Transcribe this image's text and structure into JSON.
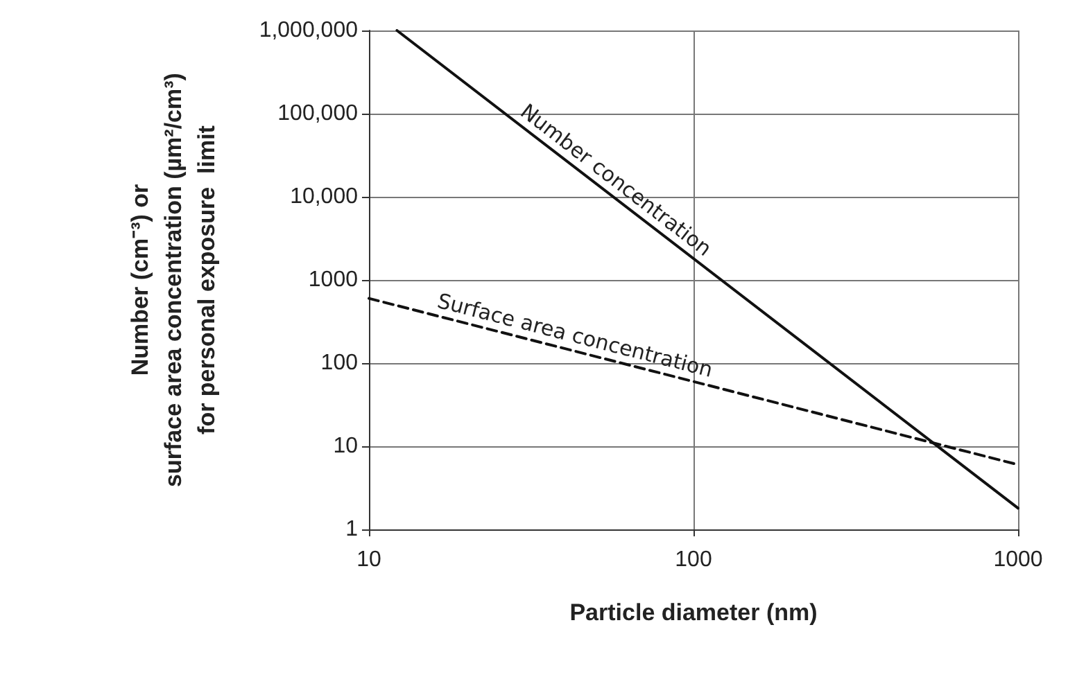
{
  "chart_data": {
    "type": "line",
    "xlabel": "Particle diameter (nm)",
    "ylabel": "Number (cm⁻³) or\nsurface area concentration (µm²/cm³)\nfor personal exposure  limit",
    "log": "xy",
    "xlim": [
      10,
      1000
    ],
    "xticks": [
      10,
      100,
      1000
    ],
    "ylim": [
      1,
      1000000
    ],
    "yticks": [
      1,
      10,
      100,
      1000,
      {
        "value": 10000,
        "label": "10,000"
      },
      {
        "value": 100000,
        "label": "100,000"
      },
      {
        "value": 1000000,
        "label": "1,000,000"
      }
    ],
    "grid": true,
    "marker": "none",
    "series": [
      {
        "color": "#111111",
        "line_style": "solid",
        "x": [
          12.2,
          1000
        ],
        "values": [
          1000000,
          1.8
        ]
      },
      {
        "color": "#111111",
        "line_style": "dashed",
        "x": [
          10,
          1000
        ],
        "values": [
          600,
          6
        ]
      }
    ],
    "annotations": [
      {
        "text": "Number concentration",
        "x": 54,
        "y": 11400
      },
      {
        "text": "Surface area concentration",
        "x": 42,
        "y": 143
      }
    ]
  }
}
